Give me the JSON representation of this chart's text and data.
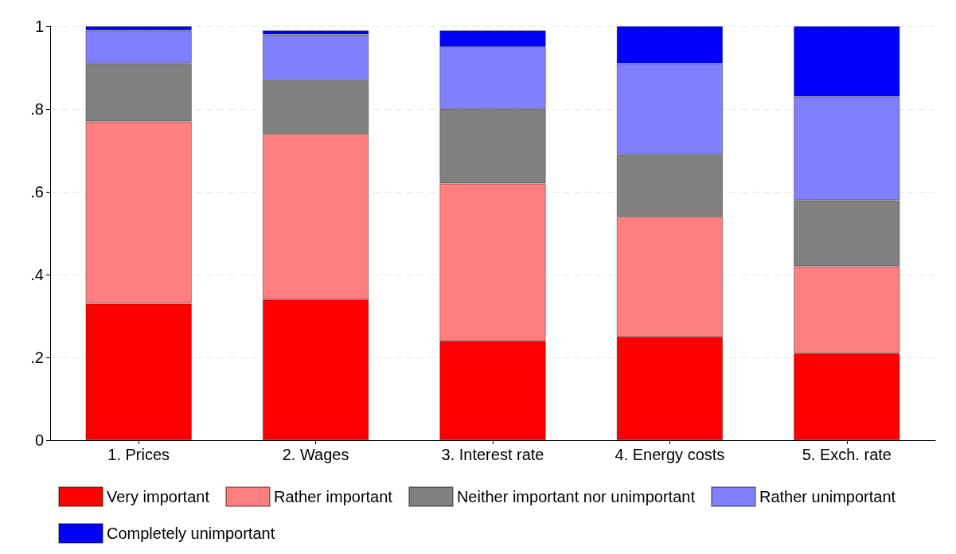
{
  "chart_data": {
    "type": "bar",
    "stacked": true,
    "categories": [
      "1. Prices",
      "2. Wages",
      "3. Interest rate",
      "4. Energy costs",
      "5. Exch. rate"
    ],
    "series": [
      {
        "name": "Very important",
        "color": "#ff0000",
        "values": [
          0.33,
          0.34,
          0.24,
          0.25,
          0.21
        ]
      },
      {
        "name": "Rather important",
        "color": "#ff7f7f",
        "values": [
          0.44,
          0.4,
          0.38,
          0.29,
          0.21
        ]
      },
      {
        "name": "Neither important nor unimportant",
        "color": "#808080",
        "values": [
          0.14,
          0.13,
          0.18,
          0.15,
          0.16
        ]
      },
      {
        "name": "Rather unimportant",
        "color": "#8080ff",
        "values": [
          0.08,
          0.11,
          0.15,
          0.22,
          0.25
        ]
      },
      {
        "name": "Completely unimportant",
        "color": "#0000ff",
        "values": [
          0.01,
          0.01,
          0.04,
          0.09,
          0.17
        ]
      }
    ],
    "ylim": [
      0,
      1
    ],
    "yticks": [
      0,
      {
        "value": 0.2,
        "label": ".2"
      },
      {
        "value": 0.4,
        "label": ".4"
      },
      {
        "value": 0.6,
        "label": ".6"
      },
      {
        "value": 0.8,
        "label": ".8"
      },
      1
    ],
    "grid": "y",
    "legend": "bottom"
  }
}
